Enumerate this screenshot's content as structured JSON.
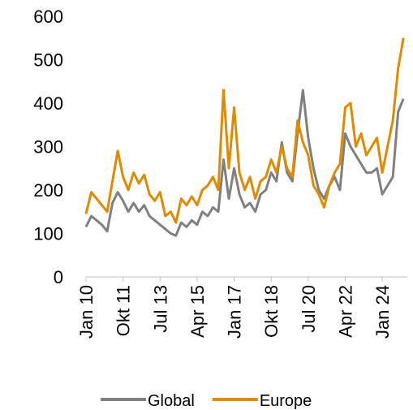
{
  "chart_data": {
    "type": "line",
    "categories": [
      "Jan 10",
      null,
      null,
      null,
      null,
      null,
      null,
      "Okt 11",
      null,
      null,
      null,
      null,
      null,
      null,
      "Jul 13",
      null,
      null,
      null,
      null,
      null,
      null,
      "Apr 15",
      null,
      null,
      null,
      null,
      null,
      null,
      "Jan 17",
      null,
      null,
      null,
      null,
      null,
      null,
      "Okt 18",
      null,
      null,
      null,
      null,
      null,
      null,
      "Jul 20",
      null,
      null,
      null,
      null,
      null,
      null,
      "Apr 22",
      null,
      null,
      null,
      null,
      null,
      null,
      "Jan 24",
      null,
      null,
      null,
      null
    ],
    "series": [
      {
        "name": "Global",
        "color": "#808080",
        "values": [
          115,
          140,
          130,
          120,
          105,
          170,
          195,
          175,
          150,
          170,
          150,
          165,
          140,
          130,
          120,
          110,
          100,
          95,
          125,
          115,
          130,
          120,
          150,
          140,
          160,
          150,
          270,
          180,
          250,
          190,
          160,
          170,
          150,
          190,
          200,
          240,
          220,
          310,
          240,
          220,
          330,
          430,
          320,
          250,
          200,
          180,
          210,
          230,
          200,
          330,
          300,
          280,
          260,
          240,
          240,
          250,
          190,
          210,
          230,
          380,
          410
        ]
      },
      {
        "name": "Europe",
        "color": "#e08a00",
        "values": [
          145,
          195,
          180,
          165,
          150,
          220,
          290,
          230,
          200,
          240,
          215,
          235,
          190,
          175,
          195,
          140,
          150,
          125,
          180,
          165,
          185,
          165,
          200,
          210,
          230,
          200,
          430,
          250,
          390,
          240,
          200,
          230,
          180,
          220,
          230,
          270,
          240,
          300,
          250,
          230,
          360,
          310,
          280,
          210,
          190,
          160,
          210,
          240,
          260,
          390,
          400,
          300,
          330,
          280,
          300,
          320,
          240,
          300,
          360,
          480,
          550
        ]
      }
    ],
    "ylim": [
      0,
      600
    ],
    "yticks": [
      0,
      100,
      200,
      300,
      400,
      500,
      600
    ],
    "legend": "bottom"
  }
}
